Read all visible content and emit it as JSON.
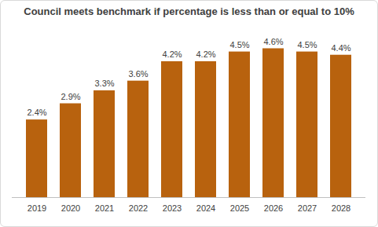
{
  "chart_data": {
    "type": "bar",
    "title": "Council meets benchmark if percentage is less than or equal to 10%",
    "categories": [
      "2019",
      "2020",
      "2021",
      "2022",
      "2023",
      "2024",
      "2025",
      "2026",
      "2027",
      "2028"
    ],
    "values": [
      2.4,
      2.9,
      3.3,
      3.6,
      4.2,
      4.2,
      4.5,
      4.6,
      4.5,
      4.4
    ],
    "value_labels": [
      "2.4%",
      "2.9%",
      "3.3%",
      "3.6%",
      "4.2%",
      "4.2%",
      "4.5%",
      "4.6%",
      "4.5%",
      "4.4%"
    ],
    "color": "#b8620e",
    "ylim": [
      0,
      5
    ],
    "yticks": [],
    "grid": false,
    "data_labels": true,
    "tick_labels": "x"
  }
}
